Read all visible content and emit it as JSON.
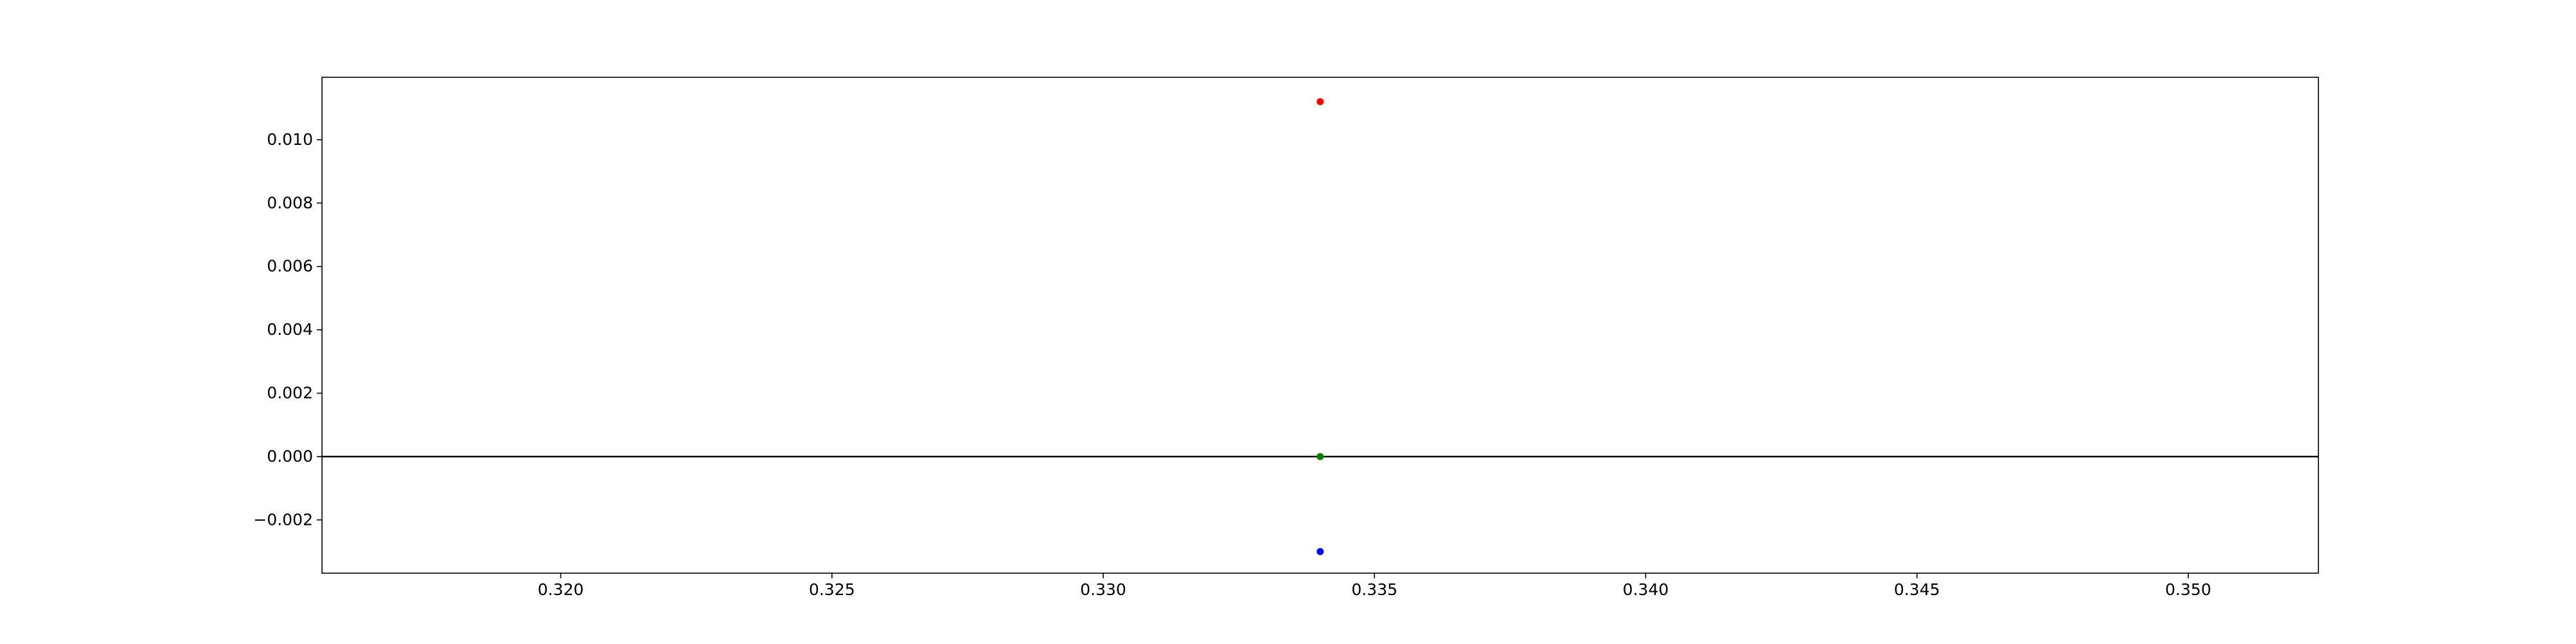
{
  "chart_data": {
    "type": "scatter",
    "title": "",
    "xlabel": "",
    "ylabel": "",
    "xlim": [
      0.3156,
      0.3524
    ],
    "ylim": [
      -0.00368,
      0.01197
    ],
    "xticks": [
      0.32,
      0.325,
      0.33,
      0.335,
      0.34,
      0.345,
      0.35
    ],
    "xtick_labels": [
      "0.320",
      "0.325",
      "0.330",
      "0.335",
      "0.340",
      "0.345",
      "0.350"
    ],
    "yticks": [
      -0.002,
      0.0,
      0.002,
      0.004,
      0.006,
      0.008,
      0.01
    ],
    "ytick_labels": [
      "−0.002",
      "0.000",
      "0.002",
      "0.004",
      "0.006",
      "0.008",
      "0.010"
    ],
    "grid": false,
    "legend": "none",
    "hlines": [
      {
        "y": 0,
        "color": "#000000"
      }
    ],
    "points": [
      {
        "x": 0.334,
        "y": 0.0112,
        "color": "#ff0000"
      },
      {
        "x": 0.334,
        "y": 0.0,
        "color": "#008000"
      },
      {
        "x": 0.334,
        "y": -0.003,
        "color": "#0000ff"
      }
    ]
  }
}
